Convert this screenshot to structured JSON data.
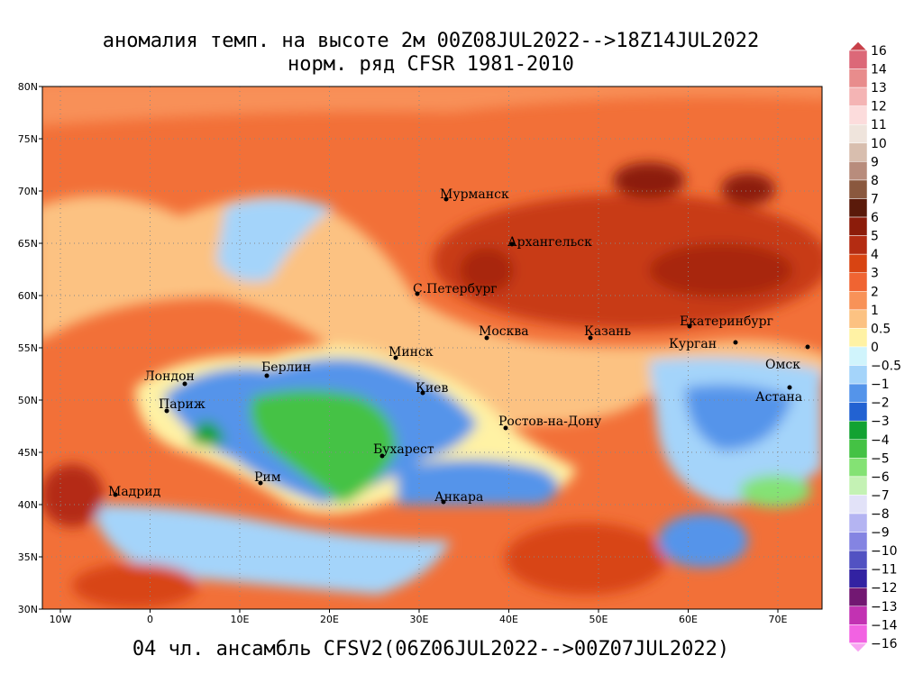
{
  "header": {
    "title_line1": "аномалия темп. на высоте 2м 00Z08JUL2022-->18Z14JUL2022",
    "title_line2": "норм. ряд CFSR 1981-2010"
  },
  "footer": "04 чл. ансамбль CFSV2(06Z06JUL2022-->00Z07JUL2022)",
  "map": {
    "lat_labels": [
      "80N",
      "75N",
      "70N",
      "65N",
      "60N",
      "55N",
      "50N",
      "45N",
      "40N",
      "35N",
      "30N"
    ],
    "lon_labels": [
      "10W",
      "0",
      "10E",
      "20E",
      "30E",
      "40E",
      "50E",
      "60E",
      "70E"
    ],
    "cities": [
      "Мурманск",
      "Архангельск",
      "С.Петербург",
      "Москва",
      "Казань",
      "Екатеринбург",
      "Курган",
      "Омск",
      "Астана",
      "Минск",
      "Киев",
      "Берлин",
      "Лондон",
      "Париж",
      "Ростов-на-Дону",
      "Бухарест",
      "Рим",
      "Мадрид",
      "Анкара"
    ]
  },
  "colorbar": {
    "labels": [
      "16",
      "14",
      "13",
      "12",
      "11",
      "10",
      "9",
      "8",
      "7",
      "6",
      "5",
      "4",
      "3",
      "2",
      "1",
      "0.5",
      "0",
      "−0.5",
      "−1",
      "−2",
      "−3",
      "−4",
      "−5",
      "−6",
      "−7",
      "−8",
      "−9",
      "−10",
      "−11",
      "−12",
      "−13",
      "−14",
      "−16"
    ],
    "top_color": "#c8404a",
    "colors": [
      "#dc6878",
      "#e88c8c",
      "#f4b4b4",
      "#fcdcdc",
      "#efe4dc",
      "#d8beae",
      "#b88c7c",
      "#8a583e",
      "#5a1a0a",
      "#8c1c0a",
      "#b42c12",
      "#d84412",
      "#f06432",
      "#f89258",
      "#fcc282",
      "#fff2a4",
      "#d0f4fc",
      "#a4d4fa",
      "#5494ea",
      "#2262d2",
      "#12a232",
      "#44c244",
      "#84e274",
      "#c4f2b4",
      "#e2e2f8",
      "#b4b4f2",
      "#8484e2",
      "#5252c2",
      "#3222a2",
      "#721872",
      "#c232b2",
      "#f262e2"
    ],
    "bottom_color": "#f8a4f2"
  }
}
